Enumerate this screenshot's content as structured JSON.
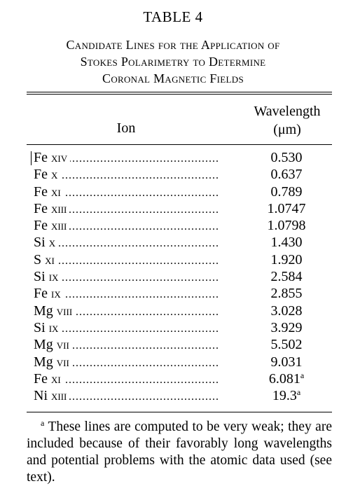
{
  "table": {
    "label": "TABLE 4",
    "caption_lines": [
      "Candidate Lines for the Application of",
      "Stokes Polarimetry to Determine",
      "Coronal Magnetic Fields"
    ],
    "headers": {
      "ion": "Ion",
      "wavelength_line1": "Wavelength",
      "wavelength_line2": "(μm)"
    },
    "rows": [
      {
        "element": "Fe",
        "stage": "xiv",
        "wavelength": "0.530",
        "note": ""
      },
      {
        "element": "Fe",
        "stage": "x",
        "wavelength": "0.637",
        "note": ""
      },
      {
        "element": "Fe",
        "stage": "xi",
        "wavelength": "0.789",
        "note": ""
      },
      {
        "element": "Fe",
        "stage": "xiii",
        "wavelength": "1.0747",
        "note": ""
      },
      {
        "element": "Fe",
        "stage": "xiii",
        "wavelength": "1.0798",
        "note": ""
      },
      {
        "element": "Si",
        "stage": "x",
        "wavelength": "1.430",
        "note": ""
      },
      {
        "element": "S",
        "stage": "xi",
        "wavelength": "1.920",
        "note": ""
      },
      {
        "element": "Si",
        "stage": "ix",
        "wavelength": "2.584",
        "note": ""
      },
      {
        "element": "Fe",
        "stage": "ix",
        "wavelength": "2.855",
        "note": ""
      },
      {
        "element": "Mg",
        "stage": "viii",
        "wavelength": "3.028",
        "note": ""
      },
      {
        "element": "Si",
        "stage": "ix",
        "wavelength": "3.929",
        "note": ""
      },
      {
        "element": "Mg",
        "stage": "vii",
        "wavelength": "5.502",
        "note": ""
      },
      {
        "element": "Mg",
        "stage": "vii",
        "wavelength": "9.031",
        "note": ""
      },
      {
        "element": "Fe",
        "stage": "xi",
        "wavelength": "6.081",
        "note": "a"
      },
      {
        "element": "Ni",
        "stage": "xiii",
        "wavelength": "19.3",
        "note": "a"
      }
    ],
    "footnote": {
      "mark": "a",
      "text": "These lines are computed to be very weak; they are included because of their favorably long wavelengths and potential problems with the atomic data used (see text)."
    }
  }
}
